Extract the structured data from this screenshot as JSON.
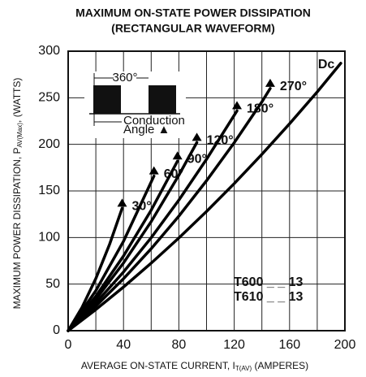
{
  "chart_data": {
    "type": "line",
    "title": [
      "MAXIMUM ON-STATE POWER DISSIPATION",
      "(RECTANGULAR WAVEFORM)"
    ],
    "x_label": {
      "main": "AVERAGE ON-STATE CURRENT, I",
      "sub": "T(AV)",
      "end": " (AMPERES)"
    },
    "y_label": {
      "main": "MAXIMUM POWER DISSIPATION, P",
      "sub": "AV(Max)",
      "end": ", (WATTS)"
    },
    "xlim": [
      0,
      200
    ],
    "ylim": [
      0,
      300
    ],
    "xticks": [
      0,
      40,
      80,
      120,
      160,
      200
    ],
    "xminor": [
      20,
      60,
      100,
      140,
      180
    ],
    "yticks": [
      0,
      50,
      100,
      150,
      200,
      250,
      300
    ],
    "grid": true,
    "color": "#000000",
    "series": [
      {
        "name": "30°",
        "end_marker": true,
        "x": [
          0,
          10,
          20,
          30,
          39
        ],
        "values": [
          0,
          25,
          56,
          93,
          131.4
        ]
      },
      {
        "name": "60°",
        "end_marker": true,
        "x": [
          0,
          20,
          40,
          62
        ],
        "values": [
          0,
          43,
          96,
          166
        ]
      },
      {
        "name": "90°",
        "end_marker": true,
        "x": [
          0,
          20,
          40,
          60,
          79
        ],
        "values": [
          0,
          37,
          80.2,
          129.4,
          182
        ]
      },
      {
        "name": "120°",
        "end_marker": true,
        "x": [
          0,
          20,
          40,
          60,
          80,
          93
        ],
        "values": [
          0,
          33.7,
          72.7,
          117.1,
          166.9,
          202
        ]
      },
      {
        "name": "180°",
        "end_marker": true,
        "x": [
          0,
          20,
          40,
          60,
          80,
          100,
          122
        ],
        "values": [
          0,
          29.8,
          63,
          99.8,
          140.2,
          184,
          236
        ]
      },
      {
        "name": "270°",
        "end_marker": true,
        "x": [
          0,
          20,
          40,
          60,
          80,
          100,
          120,
          140,
          146
        ],
        "values": [
          0,
          26.4,
          55.8,
          88,
          123,
          161,
          201.8,
          245.6,
          260
        ]
      },
      {
        "name": "Dc",
        "end_marker": false,
        "x": [
          0,
          20,
          40,
          60,
          80,
          100,
          120,
          140,
          160,
          180,
          197
        ],
        "values": [
          0,
          22.7,
          46.9,
          72.5,
          99.5,
          128,
          157.9,
          189.3,
          222.1,
          256.3,
          287
        ]
      }
    ],
    "inset": {
      "period": "360°",
      "conduction": "Conduction",
      "angle": "Angle ▲"
    },
    "annotations": [
      "T600 _ _ 13",
      "T610 _ _ 13"
    ]
  }
}
